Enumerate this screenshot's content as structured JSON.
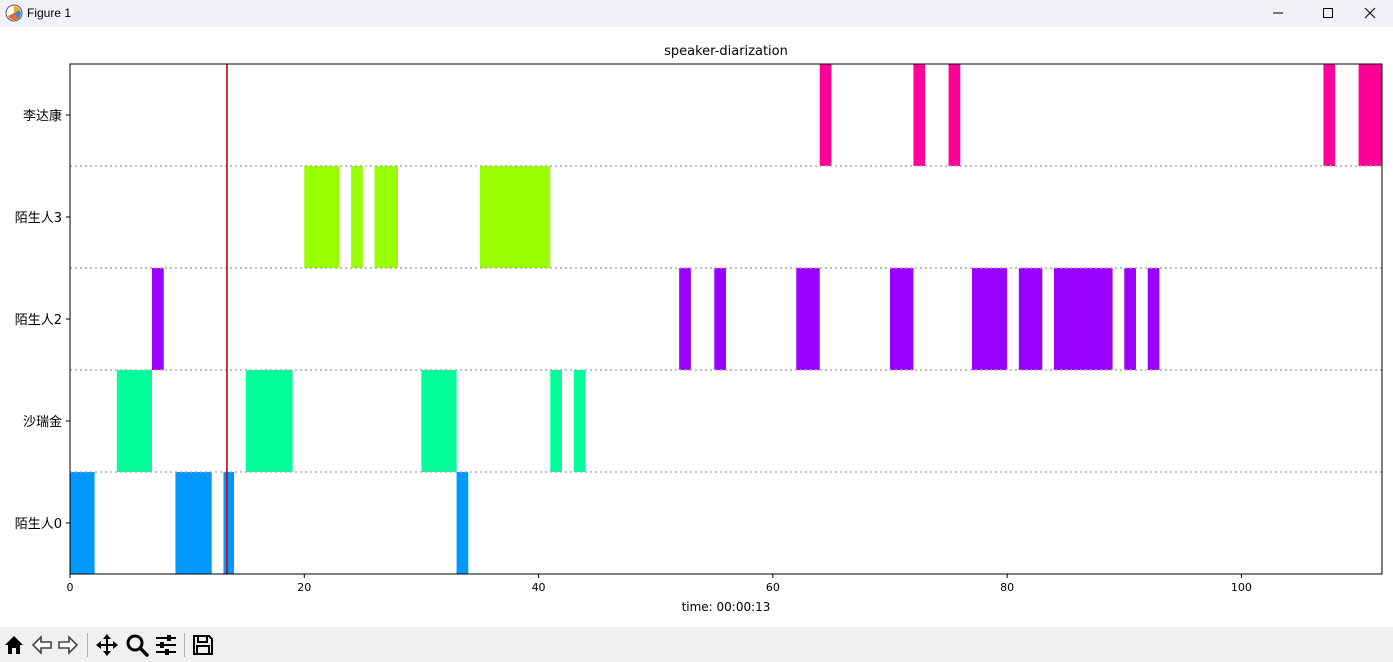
{
  "window": {
    "title": "Figure 1",
    "minimize_label": "minimize",
    "maximize_label": "maximize",
    "close_label": "close"
  },
  "toolbar": {
    "buttons": [
      "home-icon",
      "back-icon",
      "forward-icon",
      "pan-icon",
      "zoom-icon",
      "configure-subplots-icon",
      "save-icon"
    ]
  },
  "chart_data": {
    "type": "timeline",
    "title": "speaker-diarization",
    "xlabel": "time: 00:00:13",
    "ylabel": "",
    "xlim": [
      0,
      112
    ],
    "xticks": [
      0,
      20,
      40,
      60,
      80,
      100
    ],
    "cursor_x": 13.4,
    "cursor_color": "#cc0000",
    "grid": "dotted horizontal separators between speaker rows",
    "rows": [
      {
        "label": "陌生人0",
        "color": "#0099ff",
        "segments": [
          [
            0,
            2.1
          ],
          [
            9,
            12.1
          ],
          [
            13.1,
            14
          ],
          [
            33,
            34
          ]
        ]
      },
      {
        "label": "沙瑞金",
        "color": "#00ff99",
        "segments": [
          [
            4,
            7
          ],
          [
            15,
            19
          ],
          [
            30,
            33
          ],
          [
            41,
            42
          ],
          [
            43,
            44
          ]
        ]
      },
      {
        "label": "陌生人2",
        "color": "#9900ff",
        "segments": [
          [
            7,
            8
          ],
          [
            52,
            53
          ],
          [
            55,
            56
          ],
          [
            62,
            64
          ],
          [
            70,
            72
          ],
          [
            77,
            80
          ],
          [
            81,
            83
          ],
          [
            84,
            89
          ],
          [
            90,
            91
          ],
          [
            92,
            93
          ]
        ]
      },
      {
        "label": "陌生人3",
        "color": "#99ff00",
        "segments": [
          [
            20,
            23
          ],
          [
            24,
            25
          ],
          [
            26,
            28
          ],
          [
            35,
            41
          ]
        ]
      },
      {
        "label": "李达康",
        "color": "#ff0099",
        "segments": [
          [
            64,
            65
          ],
          [
            72,
            73
          ],
          [
            75,
            76
          ],
          [
            107,
            108
          ],
          [
            110,
            112
          ]
        ]
      }
    ]
  }
}
